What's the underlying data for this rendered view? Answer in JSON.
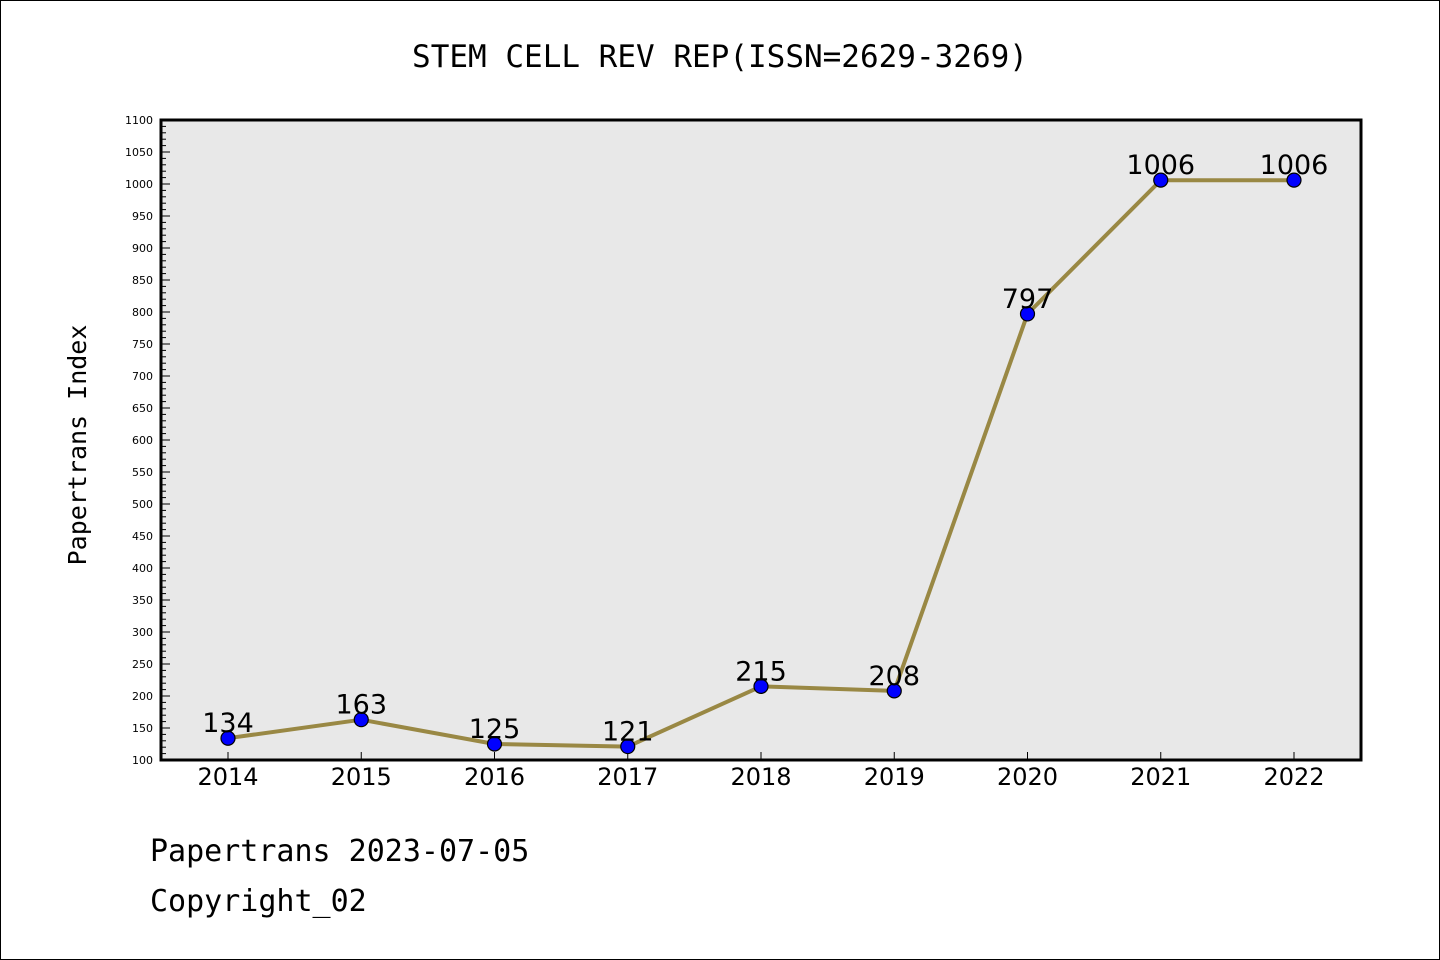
{
  "chart_data": {
    "type": "line",
    "title": "STEM CELL REV REP(ISSN=2629-3269)",
    "xlabel": "",
    "ylabel": "Papertrans Index",
    "categories": [
      "2014",
      "2015",
      "2016",
      "2017",
      "2018",
      "2019",
      "2020",
      "2021",
      "2022"
    ],
    "series": [
      {
        "values": [
          134,
          163,
          125,
          121,
          215,
          208,
          797,
          1006,
          1006
        ]
      }
    ],
    "data_labels": [
      "134",
      "163",
      "125",
      "121",
      "215",
      "208",
      "797",
      "1006",
      "1006"
    ],
    "ylim": [
      100,
      1100
    ],
    "y_ticks": [
      "100",
      "150",
      "200",
      "250",
      "300",
      "350",
      "400",
      "450",
      "500",
      "550",
      "600",
      "650",
      "700",
      "750",
      "800",
      "850",
      "900",
      "950",
      "1000",
      "1050",
      "1100"
    ],
    "grid": false,
    "legend": "none",
    "colors": {
      "line": "#998844",
      "marker_fill": "#0000ff",
      "marker_edge": "#000000",
      "plot_background": "#e8e8e8"
    }
  },
  "footer": {
    "source": "Papertrans 2023-07-05",
    "copyright": "Copyright_02"
  }
}
